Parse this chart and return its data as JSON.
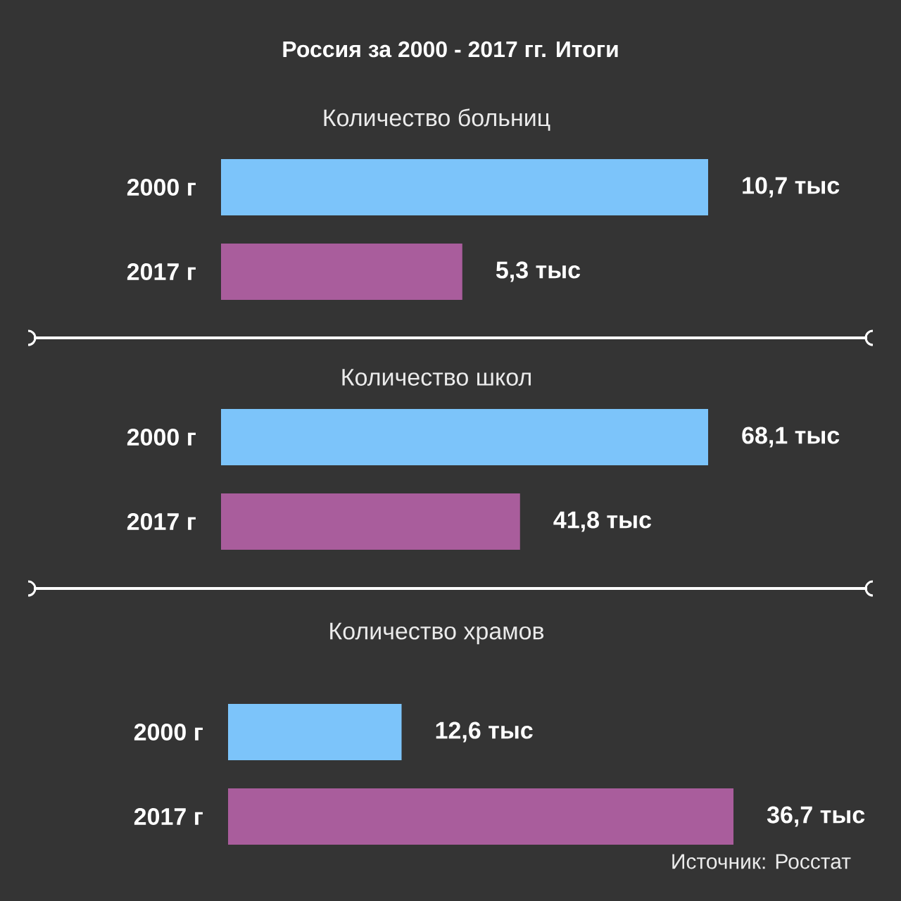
{
  "chart_data": [
    {
      "type": "bar",
      "orientation": "horizontal",
      "title": "Россия за 2000 - 2017 гг. Итоги",
      "subtitle": "Количество больниц",
      "categories": [
        "2000 г",
        "2017 г"
      ],
      "values": [
        10.7,
        5.3
      ],
      "colors": [
        "#7cc4fa",
        "#a95d9c"
      ],
      "value_labels": [
        "10,7 тыс",
        "5,3 тыс"
      ]
    },
    {
      "type": "bar",
      "orientation": "horizontal",
      "subtitle": "Количество школ",
      "categories": [
        "2000 г",
        "2017 г"
      ],
      "values": [
        68.1,
        41.8
      ],
      "colors": [
        "#7cc4fa",
        "#a95d9c"
      ],
      "value_labels": [
        "68,1 тыс",
        "41,8 тыс"
      ]
    },
    {
      "type": "bar",
      "orientation": "horizontal",
      "subtitle": "Количество храмов",
      "categories": [
        "2000 г",
        "2017 г"
      ],
      "values": [
        12.6,
        36.7
      ],
      "colors": [
        "#7cc4fa",
        "#a95d9c"
      ],
      "value_labels": [
        "12,6 тыс",
        "36,7 тыс"
      ],
      "annotations": [
        "Источник: Росстат"
      ]
    }
  ]
}
